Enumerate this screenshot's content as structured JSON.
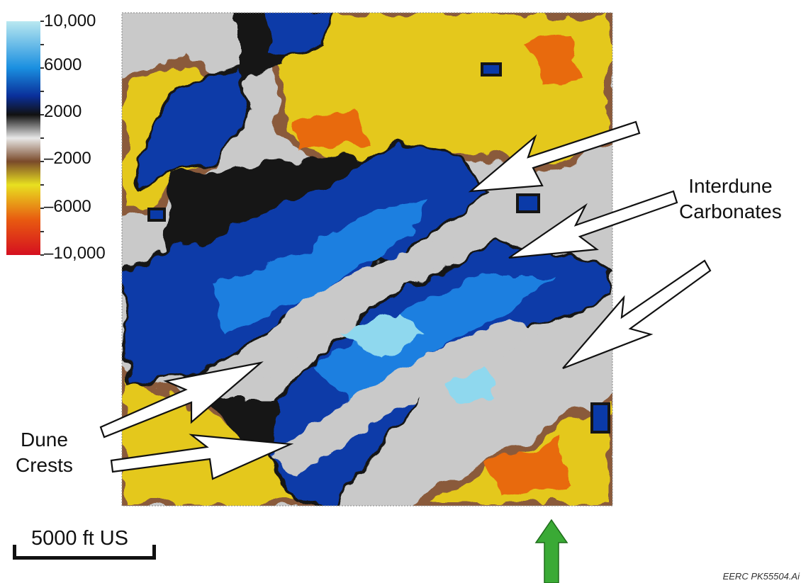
{
  "colorbar": {
    "labels": [
      "10,000",
      "6000",
      "2000",
      "–2000",
      "–6000",
      "–10,000"
    ],
    "values": [
      10000,
      6000,
      2000,
      -2000,
      -6000,
      -10000
    ],
    "colors": [
      "#b9e8f0",
      "#1a8fe0",
      "#0a2f9a",
      "#111111",
      "#e8e8e8",
      "#7a4a2a",
      "#e8e020",
      "#e85a10",
      "#d51020"
    ]
  },
  "callouts": {
    "interdune": [
      "Interdune",
      "Carbonates"
    ],
    "dune": [
      "Dune",
      "Crests"
    ]
  },
  "scale_bar": {
    "label": "5000 ft US"
  },
  "north_arrow": {
    "color": "#3aaa35"
  },
  "footer": {
    "code": "EERC PK55504.Ai"
  },
  "map_palette": {
    "blue_deep": "#0a3aa8",
    "blue_mid": "#1f7fe0",
    "blue_light": "#8fd8ee",
    "black": "#151515",
    "gray": "#c9c9c9",
    "brown": "#8a5a3a",
    "yellow": "#e4c81a",
    "orange": "#e86a10",
    "red": "#d62010"
  }
}
